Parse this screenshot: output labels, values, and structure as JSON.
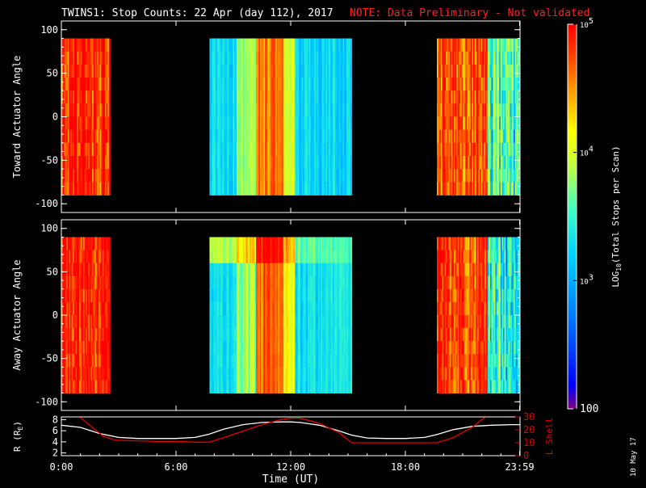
{
  "header": {
    "title": "TWINS1: Stop Counts: 22 Apr (day 112), 2017",
    "note": "NOTE: Data Preliminary - Not validated"
  },
  "footer": {
    "date_stamp": "10 May 17"
  },
  "colors": {
    "background": "#000000",
    "text": "#ffffff",
    "note": "#ff2020",
    "lshell": "#e00000",
    "r_line": "#ffffff"
  },
  "chart_data": [
    {
      "type": "heatmap",
      "title": "",
      "ylabel": "Toward Actuator Angle",
      "xlim": [
        0,
        24
      ],
      "ylim": [
        -110,
        110
      ],
      "yticks": [
        "-100",
        "-50",
        "0",
        "50",
        "100"
      ],
      "ytick_values": [
        -100,
        -50,
        0,
        50,
        100
      ],
      "data_ylim": [
        -90,
        90
      ],
      "segments": [
        {
          "start": 0.0,
          "end": 2.55,
          "level": 4.85,
          "stripe": "mixed"
        },
        {
          "start": 7.75,
          "end": 15.2,
          "level": 3.05,
          "stripe": "smooth"
        },
        {
          "start": 19.65,
          "end": 24.0,
          "level": 4.7,
          "stripe": "mixed"
        }
      ]
    },
    {
      "type": "heatmap",
      "title": "",
      "ylabel": "Away Actuator Angle",
      "xlim": [
        0,
        24
      ],
      "ylim": [
        -110,
        110
      ],
      "yticks": [
        "-100",
        "-50",
        "0",
        "50",
        "100"
      ],
      "ytick_values": [
        -100,
        -50,
        0,
        50,
        100
      ],
      "data_ylim": [
        -90,
        90
      ],
      "segments": [
        {
          "start": 0.0,
          "end": 2.55,
          "level": 4.85,
          "stripe": "mixed"
        },
        {
          "start": 7.75,
          "end": 15.2,
          "level": 3.1,
          "stripe": "smooth"
        },
        {
          "start": 19.65,
          "end": 24.0,
          "level": 4.7,
          "stripe": "mixed"
        }
      ]
    },
    {
      "type": "line",
      "title": "",
      "xlabel": "Time (UT)",
      "ylabel": "R (R",
      "ylabel_sub": "E",
      "ylabel_close": ")",
      "y2label": "L Shell",
      "xlim": [
        0,
        24
      ],
      "xticks": [
        "0:00",
        "6:00",
        "12:00",
        "18:00",
        "23:59"
      ],
      "xtick_values": [
        0,
        6,
        12,
        18,
        23.98
      ],
      "ylim": [
        1.5,
        8.5
      ],
      "yticks": [
        "2",
        "4",
        "6",
        "8"
      ],
      "ytick_values": [
        2,
        4,
        6,
        8
      ],
      "y2lim": [
        0,
        30
      ],
      "y2ticks": [
        "0",
        "10",
        "20",
        "30"
      ],
      "y2tick_values": [
        0,
        10,
        20,
        30
      ],
      "series": [
        {
          "axis": "left",
          "x": [
            0,
            1,
            2,
            3,
            4,
            5,
            6,
            7,
            7.75,
            8.5,
            9.5,
            10.5,
            11.5,
            12,
            12.5,
            13.5,
            14.5,
            15.2,
            16,
            17,
            18,
            19,
            19.65,
            20.5,
            21.5,
            22.5,
            23.5,
            24
          ],
          "values": [
            7.0,
            6.6,
            5.5,
            4.8,
            4.6,
            4.6,
            4.6,
            4.8,
            5.4,
            6.3,
            7.1,
            7.5,
            7.6,
            7.6,
            7.5,
            7.0,
            6.0,
            5.2,
            4.7,
            4.6,
            4.6,
            4.8,
            5.3,
            6.2,
            6.8,
            7.0,
            7.1,
            7.1
          ]
        },
        {
          "axis": "right",
          "x": [
            0,
            0.8,
            1.6,
            2.2,
            2.8,
            4,
            5,
            6,
            7,
            7.75,
            8.5,
            9.5,
            10.5,
            11.5,
            12,
            12.5,
            13.5,
            14.5,
            15.2,
            16,
            17,
            18,
            19,
            19.65,
            20.5,
            21.5,
            22,
            22.5
          ],
          "values": [
            42,
            32,
            22,
            15,
            12,
            11.5,
            11,
            11,
            10.5,
            10.5,
            14,
            19,
            24,
            28,
            29,
            29,
            25,
            18,
            10,
            10,
            10,
            10,
            10,
            10,
            14,
            22,
            28,
            34
          ]
        }
      ]
    },
    {
      "type": "heatmap",
      "title": "",
      "ylabel": "LOG10(Total Stops per Scan)",
      "ylabel_parts": [
        "LOG",
        "10",
        "(Total Stops per Scan)"
      ],
      "zlim": [
        100,
        100000
      ],
      "zticks": [
        {
          "value": 100000,
          "base": "10",
          "exp": "5"
        },
        {
          "value": 10000,
          "base": "10",
          "exp": "4"
        },
        {
          "value": 1000,
          "base": "10",
          "exp": "3"
        },
        {
          "value": 100,
          "base": "100",
          "exp": ""
        }
      ],
      "colormap": [
        "#7f007f",
        "#0000ff",
        "#0080ff",
        "#00d0ff",
        "#40ffc0",
        "#c0ff40",
        "#ffff00",
        "#ffa000",
        "#ff4000",
        "#ff0000"
      ]
    }
  ]
}
